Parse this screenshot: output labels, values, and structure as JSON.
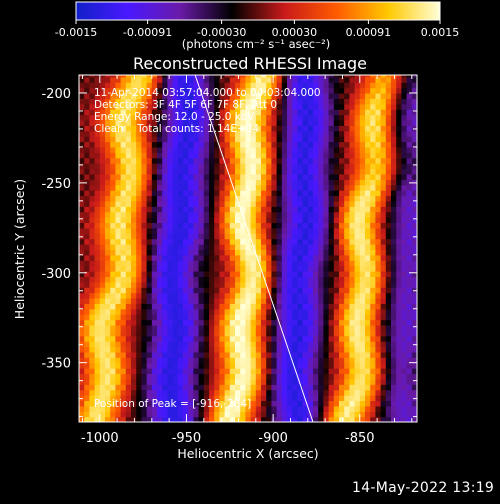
{
  "colorbar": {
    "min": -0.0015,
    "max": 0.0015,
    "ticks": [
      {
        "value": -0.0015,
        "label": "-0.0015"
      },
      {
        "value": -0.00091,
        "label": "-0.00091"
      },
      {
        "value": -0.0003,
        "label": "-0.00030"
      },
      {
        "value": 0.0003,
        "label": "0.00030"
      },
      {
        "value": 0.00091,
        "label": "0.00091"
      },
      {
        "value": 0.0015,
        "label": "0.0015"
      }
    ],
    "unit_label": "(photons cm⁻² s⁻¹ asec⁻²)",
    "colors": [
      "#1020c8",
      "#4a18ff",
      "#6a1aa8",
      "#000000",
      "#c81a1a",
      "#ff5a00",
      "#ffc800",
      "#ffffd8"
    ]
  },
  "chart_data": {
    "type": "heatmap",
    "title": "Reconstructed RHESSI Image",
    "xlabel": "Heliocentric X (arcsec)",
    "ylabel": "Heliocentric Y (arcsec)",
    "xlim": [
      -1012,
      -817
    ],
    "ylim": [
      -383,
      -190
    ],
    "xticks": [
      -1000,
      -950,
      -900,
      -850
    ],
    "yticks": [
      -200,
      -250,
      -300,
      -350
    ],
    "xtick_labels": [
      "-1000",
      "-950",
      "-900",
      "-850"
    ],
    "ytick_labels": [
      "-200",
      "-250",
      "-300",
      "-350"
    ],
    "bright_bands": [
      {
        "x_at_ymin": -1000,
        "x_at_ymax": -978,
        "peak": 0.0013
      },
      {
        "x_at_ymin": -920,
        "x_at_ymax": -910,
        "peak": 0.0015
      },
      {
        "x_at_ymin": -855,
        "x_at_ymax": -838,
        "peak": 0.0014
      }
    ],
    "dark_bands": [
      {
        "x_at_ymin": -960,
        "x_at_ymax": -950,
        "peak": -0.0013
      },
      {
        "x_at_ymin": -888,
        "x_at_ymax": -880,
        "peak": -0.0013
      },
      {
        "x_at_ymin": -825,
        "x_at_ymax": -822,
        "peak": -0.0008
      }
    ],
    "limb_line": {
      "x": [
        -945,
        -877
      ],
      "y": [
        -190,
        -383
      ]
    },
    "annotations": [
      "11-Apr-2014 03:57:04.000 to 04:03:04.000",
      "Detectors: 3F 4F 5F 6F 7F 8F, Att 0",
      "Energy Range: 12.0 - 25.0 keV",
      "Clean    Total counts: 1.14E+04"
    ],
    "peak": {
      "label": "Position of Peak = [-916,-284]",
      "x": -916,
      "y": -284
    }
  },
  "timestamp": "14-May-2022 13:19"
}
